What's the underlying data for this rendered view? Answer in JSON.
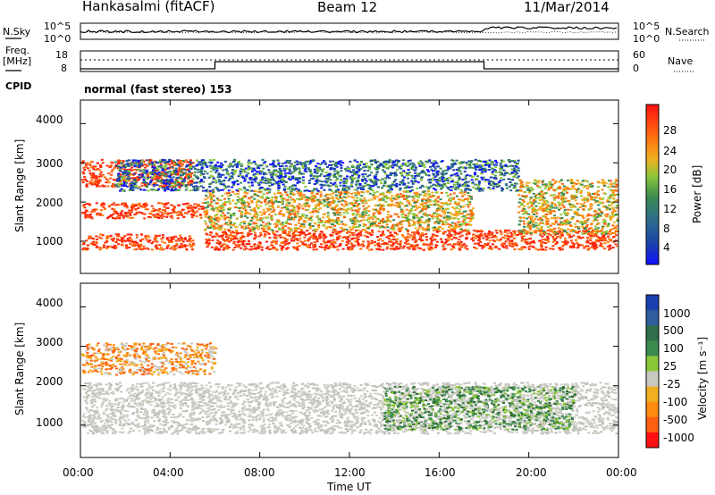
{
  "header": {
    "station": "Hankasalmi (fitACF)",
    "beam": "Beam 12",
    "date": "11/Mar/2014"
  },
  "top_panels": {
    "nsky_label": "N.Sky",
    "nsearch_label": "N.Search",
    "noise_ticks_left": [
      "10^5",
      "10^0"
    ],
    "noise_ticks_right": [
      "10^5",
      "10^0"
    ],
    "freq_label_1": "Freq.",
    "freq_label_2": "[MHz]",
    "freq_ticks": [
      "18",
      "8"
    ],
    "nave_label": "Nave",
    "nave_ticks": [
      "60",
      "0"
    ],
    "cpid_label": "CPID",
    "cpid_value": "normal (fast stereo) 153"
  },
  "axes": {
    "ylabel": "Slant Range [km]",
    "xlabel": "Time UT",
    "y_ticks": [
      "4000",
      "3000",
      "2000",
      "1000"
    ],
    "x_ticks": [
      "00:00",
      "04:00",
      "08:00",
      "12:00",
      "16:00",
      "20:00",
      "00:00"
    ]
  },
  "colorbars": {
    "power_label": "Power [dB]",
    "power_ticks": [
      "28",
      "24",
      "20",
      "16",
      "12",
      "8",
      "4"
    ],
    "velocity_label": "Velocity [m s⁻¹]",
    "velocity_ticks": [
      "1000",
      "500",
      "100",
      "25",
      "-25",
      "-100",
      "-500",
      "-1000"
    ]
  },
  "chart_data": [
    {
      "type": "heatmap",
      "title": "Power",
      "xlabel": "Time UT",
      "ylabel": "Slant Range [km]",
      "xlim": [
        0,
        24
      ],
      "ylim": [
        180,
        4600
      ],
      "colorbar": {
        "label": "Power [dB]",
        "range": [
          0,
          30
        ],
        "ticks": [
          4,
          8,
          12,
          16,
          20,
          24,
          28
        ]
      },
      "bands": [
        {
          "t0": 0.0,
          "t1": 5.0,
          "r0": 800,
          "r1": 1200,
          "level": "high"
        },
        {
          "t0": 0.0,
          "t1": 5.5,
          "r0": 1600,
          "r1": 2000,
          "level": "high"
        },
        {
          "t0": 0.0,
          "t1": 5.0,
          "r0": 2400,
          "r1": 3100,
          "level": "high"
        },
        {
          "t0": 5.5,
          "t1": 24.0,
          "r0": 800,
          "r1": 1300,
          "level": "high"
        },
        {
          "t0": 5.5,
          "t1": 17.5,
          "r0": 1300,
          "r1": 2300,
          "level": "medium"
        },
        {
          "t0": 1.5,
          "t1": 19.5,
          "r0": 2300,
          "r1": 3100,
          "level": "low"
        },
        {
          "t0": 19.5,
          "t1": 24.0,
          "r0": 1200,
          "r1": 2600,
          "level": "medium"
        }
      ]
    },
    {
      "type": "heatmap",
      "title": "Velocity",
      "xlabel": "Time UT",
      "ylabel": "Slant Range [km]",
      "xlim": [
        0,
        24
      ],
      "ylim": [
        180,
        4600
      ],
      "colorbar": {
        "label": "Velocity [m s⁻¹]",
        "ticks": [
          1000,
          500,
          100,
          25,
          -25,
          -100,
          -500,
          -1000
        ]
      },
      "bands": [
        {
          "t0": 0.0,
          "t1": 24.0,
          "r0": 800,
          "r1": 2100,
          "level": "near-zero (grey)"
        },
        {
          "t0": 0.0,
          "t1": 6.0,
          "r0": 2300,
          "r1": 3100,
          "level": "negative (orange)"
        },
        {
          "t0": 13.5,
          "t1": 22.0,
          "r0": 900,
          "r1": 2000,
          "level": "positive (green)"
        }
      ]
    }
  ]
}
